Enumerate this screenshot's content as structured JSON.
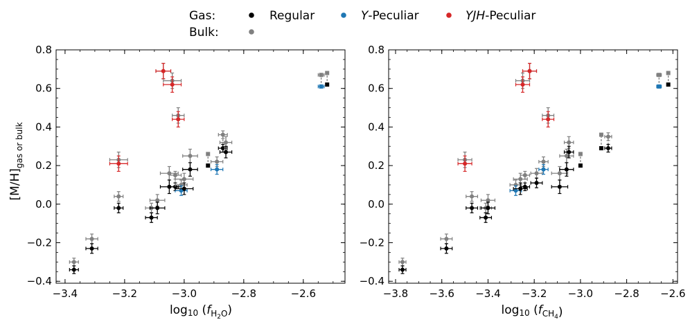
{
  "legend": {
    "gas_label": "Gas:",
    "bulk_label": "Bulk:",
    "entries": [
      {
        "label": "Regular",
        "color": "#000000"
      },
      {
        "prefix": "Y",
        "suffix": "-Peculiar",
        "color": "#1f77b4"
      },
      {
        "prefix": "YJH",
        "suffix": "-Peculiar",
        "color": "#d62728"
      }
    ],
    "bulk_color": "#808080"
  },
  "ylabel": {
    "main": "[M/H]",
    "sub": "gas or bulk"
  },
  "chart_data": [
    {
      "type": "scatter",
      "xlabel": {
        "prefix": "log",
        "base": "10",
        "func": "f",
        "sub": "H",
        "sub2": "2",
        "sub3": "O"
      },
      "xlim": [
        -3.43,
        -2.46
      ],
      "ylim": [
        -0.41,
        0.8
      ],
      "xticks": [
        -3.4,
        -3.2,
        -3.0,
        -2.8,
        -2.6
      ],
      "xticklabels": [
        "−3.4",
        "−3.2",
        "−3.0",
        "−2.8",
        "−2.6"
      ],
      "yticks": [
        -0.4,
        -0.2,
        0.0,
        0.2,
        0.4,
        0.6,
        0.8
      ],
      "yticklabels": [
        "−0.4",
        "−0.2",
        "0.0",
        "0.2",
        "0.4",
        "0.6",
        "0.8"
      ],
      "points": [
        {
          "x": -3.37,
          "gas": -0.34,
          "bulk": -0.3,
          "xerr": 0.015,
          "yerr": 0.02,
          "cls": "regular"
        },
        {
          "x": -3.31,
          "gas": -0.23,
          "bulk": -0.18,
          "xerr": 0.02,
          "yerr": 0.025,
          "cls": "regular"
        },
        {
          "x": -3.22,
          "gas": -0.02,
          "bulk": 0.04,
          "xerr": 0.015,
          "yerr": 0.025,
          "cls": "regular"
        },
        {
          "x": -3.22,
          "gas": 0.21,
          "bulk": 0.23,
          "xerr": 0.03,
          "yerr": 0.04,
          "cls": "yjh"
        },
        {
          "x": -3.11,
          "gas": -0.07,
          "bulk": -0.02,
          "xerr": 0.02,
          "yerr": 0.025,
          "cls": "regular"
        },
        {
          "x": -3.09,
          "gas": -0.02,
          "bulk": 0.02,
          "xerr": 0.025,
          "yerr": 0.03,
          "cls": "regular"
        },
        {
          "x": -3.07,
          "gas": 0.69,
          "bulk": 0.69,
          "xerr": 0.025,
          "yerr": 0.04,
          "cls": "yjh"
        },
        {
          "x": -3.05,
          "gas": 0.09,
          "bulk": 0.16,
          "xerr": 0.03,
          "yerr": 0.035,
          "cls": "regular"
        },
        {
          "x": -3.04,
          "gas": 0.62,
          "bulk": 0.64,
          "xerr": 0.03,
          "yerr": 0.04,
          "cls": "yjh"
        },
        {
          "x": -3.03,
          "gas": 0.09,
          "bulk": 0.15,
          "xerr": 0.02,
          "yerr": 0.02,
          "cls": "regular"
        },
        {
          "x": -3.02,
          "gas": 0.44,
          "bulk": 0.46,
          "xerr": 0.02,
          "yerr": 0.04,
          "cls": "yjh"
        },
        {
          "x": -3.01,
          "gas": 0.07,
          "bulk": 0.1,
          "xerr": 0.02,
          "yerr": 0.025,
          "cls": "y"
        },
        {
          "x": -3.0,
          "gas": 0.08,
          "bulk": 0.13,
          "xerr": 0.03,
          "yerr": 0.03,
          "cls": "regular"
        },
        {
          "x": -2.98,
          "gas": 0.18,
          "bulk": 0.25,
          "xerr": 0.025,
          "yerr": 0.035,
          "cls": "regular"
        },
        {
          "x": -2.92,
          "gas": 0.2,
          "bulk": 0.26,
          "xerr": 0.0,
          "yerr": 0.0,
          "cls": "regular",
          "square": true
        },
        {
          "x": -2.89,
          "gas": 0.18,
          "bulk": 0.22,
          "xerr": 0.02,
          "yerr": 0.025,
          "cls": "y"
        },
        {
          "x": -2.87,
          "gas": 0.29,
          "bulk": 0.36,
          "xerr": 0.015,
          "yerr": 0.02,
          "cls": "regular"
        },
        {
          "x": -2.86,
          "gas": 0.27,
          "bulk": 0.32,
          "xerr": 0.02,
          "yerr": 0.03,
          "cls": "regular"
        },
        {
          "x": -2.54,
          "gas": 0.61,
          "bulk": 0.67,
          "xerr": 0.01,
          "yerr": 0.0,
          "cls": "y",
          "square": true
        },
        {
          "x": -2.52,
          "gas": 0.62,
          "bulk": 0.68,
          "xerr": 0.0,
          "yerr": 0.0,
          "cls": "regular",
          "square": true
        }
      ]
    },
    {
      "type": "scatter",
      "xlabel": {
        "prefix": "log",
        "base": "10",
        "func": "f",
        "sub": "CH",
        "sub2": "4",
        "sub3": ""
      },
      "xlim": [
        -3.83,
        -2.58
      ],
      "ylim": [
        -0.41,
        0.8
      ],
      "xticks": [
        -3.8,
        -3.6,
        -3.4,
        -3.2,
        -3.0,
        -2.8,
        -2.6
      ],
      "xticklabels": [
        "−3.8",
        "−3.6",
        "−3.4",
        "−3.2",
        "−3.0",
        "−2.8",
        "−2.6"
      ],
      "yticks": [
        -0.4,
        -0.2,
        0.0,
        0.2,
        0.4,
        0.6,
        0.8
      ],
      "yticklabels": [
        "−0.4",
        "−0.2",
        "0.0",
        "0.2",
        "0.4",
        "0.6",
        "0.8"
      ],
      "points": [
        {
          "x": -3.77,
          "gas": -0.34,
          "bulk": -0.3,
          "xerr": 0.015,
          "yerr": 0.02,
          "cls": "regular"
        },
        {
          "x": -3.58,
          "gas": -0.23,
          "bulk": -0.18,
          "xerr": 0.025,
          "yerr": 0.025,
          "cls": "regular"
        },
        {
          "x": -3.5,
          "gas": 0.21,
          "bulk": 0.23,
          "xerr": 0.03,
          "yerr": 0.04,
          "cls": "yjh"
        },
        {
          "x": -3.47,
          "gas": -0.02,
          "bulk": 0.04,
          "xerr": 0.025,
          "yerr": 0.025,
          "cls": "regular"
        },
        {
          "x": -3.41,
          "gas": -0.07,
          "bulk": -0.02,
          "xerr": 0.025,
          "yerr": 0.025,
          "cls": "regular"
        },
        {
          "x": -3.4,
          "gas": -0.02,
          "bulk": 0.02,
          "xerr": 0.03,
          "yerr": 0.03,
          "cls": "regular"
        },
        {
          "x": -3.28,
          "gas": 0.07,
          "bulk": 0.1,
          "xerr": 0.025,
          "yerr": 0.025,
          "cls": "y"
        },
        {
          "x": -3.26,
          "gas": 0.08,
          "bulk": 0.13,
          "xerr": 0.03,
          "yerr": 0.03,
          "cls": "regular"
        },
        {
          "x": -3.25,
          "gas": 0.62,
          "bulk": 0.64,
          "xerr": 0.03,
          "yerr": 0.04,
          "cls": "yjh"
        },
        {
          "x": -3.24,
          "gas": 0.09,
          "bulk": 0.15,
          "xerr": 0.02,
          "yerr": 0.02,
          "cls": "regular"
        },
        {
          "x": -3.22,
          "gas": 0.69,
          "bulk": 0.69,
          "xerr": 0.03,
          "yerr": 0.04,
          "cls": "yjh"
        },
        {
          "x": -3.19,
          "gas": 0.11,
          "bulk": 0.16,
          "xerr": 0.025,
          "yerr": 0.025,
          "cls": "regular"
        },
        {
          "x": -3.16,
          "gas": 0.18,
          "bulk": 0.22,
          "xerr": 0.02,
          "yerr": 0.025,
          "cls": "y"
        },
        {
          "x": -3.14,
          "gas": 0.44,
          "bulk": 0.46,
          "xerr": 0.025,
          "yerr": 0.04,
          "cls": "yjh"
        },
        {
          "x": -3.09,
          "gas": 0.09,
          "bulk": 0.16,
          "xerr": 0.035,
          "yerr": 0.035,
          "cls": "regular"
        },
        {
          "x": -3.06,
          "gas": 0.18,
          "bulk": 0.25,
          "xerr": 0.03,
          "yerr": 0.035,
          "cls": "regular"
        },
        {
          "x": -3.05,
          "gas": 0.27,
          "bulk": 0.32,
          "xerr": 0.02,
          "yerr": 0.03,
          "cls": "regular"
        },
        {
          "x": -3.0,
          "gas": 0.2,
          "bulk": 0.26,
          "xerr": 0.0,
          "yerr": 0.0,
          "cls": "regular",
          "square": true
        },
        {
          "x": -2.91,
          "gas": 0.29,
          "bulk": 0.36,
          "xerr": 0.0,
          "yerr": 0.0,
          "cls": "regular",
          "square": true
        },
        {
          "x": -2.88,
          "gas": 0.29,
          "bulk": 0.35,
          "xerr": 0.015,
          "yerr": 0.02,
          "cls": "regular"
        },
        {
          "x": -2.66,
          "gas": 0.61,
          "bulk": 0.67,
          "xerr": 0.01,
          "yerr": 0.0,
          "cls": "y",
          "square": true
        },
        {
          "x": -2.62,
          "gas": 0.62,
          "bulk": 0.68,
          "xerr": 0.0,
          "yerr": 0.0,
          "cls": "regular",
          "square": true
        }
      ]
    }
  ]
}
